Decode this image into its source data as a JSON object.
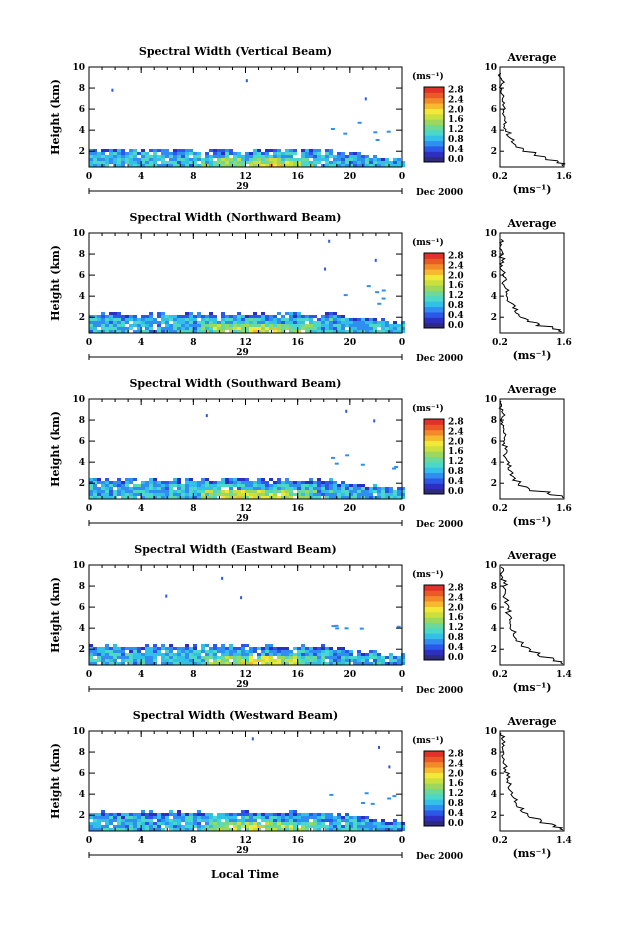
{
  "figure": {
    "time_axis_label": "Local Time",
    "date_label": "Dec 2000",
    "day_label": "29",
    "height_axis_label": "Height (km)",
    "unit_label": "(ms⁻¹)",
    "profile_title": "Average",
    "palette": [
      "#2e2a7e",
      "#2c2fc0",
      "#2c58e8",
      "#2f8ef0",
      "#32bfe8",
      "#4cd8c8",
      "#6ad99a",
      "#9bd95e",
      "#cbe03c",
      "#f2e83a",
      "#f7b92e",
      "#f28a2a",
      "#ea5a26",
      "#e0322a"
    ]
  },
  "chart_data": [
    {
      "type": "heatmap",
      "title": "Spectral Width (Vertical Beam)",
      "xlabel": "",
      "ylabel": "Height (km)",
      "x_ticks": [
        "0",
        "4",
        "8",
        "12",
        "16",
        "20",
        "0"
      ],
      "xlim": [
        0,
        24
      ],
      "y_ticks": [
        "2",
        "4",
        "6",
        "8",
        "10"
      ],
      "ylim": [
        0.5,
        10
      ],
      "colorbar": {
        "ticks": [
          "0.0",
          "0.4",
          "0.8",
          "1.2",
          "1.6",
          "2.0",
          "2.4",
          "2.8"
        ],
        "range": [
          0,
          2.8
        ]
      },
      "layer_top_km": 2.3,
      "profile": {
        "title": "Average",
        "xlabel": "(ms⁻¹)",
        "x_ticks": [
          "0.2",
          "1.6"
        ],
        "xlim": [
          0.2,
          1.6
        ],
        "y_ticks": [
          "2",
          "4",
          "6",
          "8",
          "10"
        ],
        "points": [
          [
            1.58,
            0.6
          ],
          [
            1.45,
            0.9
          ],
          [
            1.2,
            1.2
          ],
          [
            0.95,
            1.6
          ],
          [
            0.7,
            2.0
          ],
          [
            0.55,
            2.4
          ],
          [
            0.45,
            2.9
          ],
          [
            0.38,
            3.4
          ],
          [
            0.32,
            3.9
          ],
          [
            0.3,
            4.4
          ],
          [
            0.3,
            4.9
          ],
          [
            0.28,
            5.4
          ],
          [
            0.27,
            5.9
          ],
          [
            0.26,
            6.4
          ],
          [
            0.25,
            6.9
          ],
          [
            0.25,
            7.4
          ],
          [
            0.24,
            7.9
          ],
          [
            0.24,
            8.4
          ],
          [
            0.23,
            8.9
          ],
          [
            0.22,
            9.4
          ]
        ]
      }
    },
    {
      "type": "heatmap",
      "title": "Spectral Width (Northward Beam)",
      "xlabel": "",
      "ylabel": "Height (km)",
      "x_ticks": [
        "0",
        "4",
        "8",
        "12",
        "16",
        "20",
        "0"
      ],
      "xlim": [
        0,
        24
      ],
      "y_ticks": [
        "2",
        "4",
        "6",
        "8",
        "10"
      ],
      "ylim": [
        0.5,
        10
      ],
      "colorbar": {
        "ticks": [
          "0.0",
          "0.4",
          "0.8",
          "1.2",
          "1.6",
          "2.0",
          "2.4",
          "2.8"
        ],
        "range": [
          0,
          2.8
        ]
      },
      "layer_top_km": 2.5,
      "profile": {
        "title": "Average",
        "xlabel": "(ms⁻¹)",
        "x_ticks": [
          "0.2",
          "1.6"
        ],
        "xlim": [
          0.2,
          1.6
        ],
        "y_ticks": [
          "2",
          "4",
          "6",
          "8",
          "10"
        ],
        "points": [
          [
            1.55,
            0.6
          ],
          [
            1.35,
            0.9
          ],
          [
            1.0,
            1.2
          ],
          [
            0.8,
            1.6
          ],
          [
            0.65,
            2.0
          ],
          [
            0.55,
            2.4
          ],
          [
            0.48,
            2.9
          ],
          [
            0.42,
            3.4
          ],
          [
            0.36,
            3.9
          ],
          [
            0.33,
            4.4
          ],
          [
            0.3,
            4.9
          ],
          [
            0.28,
            5.4
          ],
          [
            0.27,
            5.9
          ],
          [
            0.26,
            6.4
          ],
          [
            0.25,
            6.9
          ],
          [
            0.24,
            7.4
          ],
          [
            0.24,
            7.9
          ],
          [
            0.23,
            8.4
          ],
          [
            0.23,
            8.9
          ],
          [
            0.22,
            9.4
          ]
        ]
      }
    },
    {
      "type": "heatmap",
      "title": "Spectral Width (Southward Beam)",
      "xlabel": "",
      "ylabel": "Height (km)",
      "x_ticks": [
        "0",
        "4",
        "8",
        "12",
        "16",
        "20",
        "0"
      ],
      "xlim": [
        0,
        24
      ],
      "y_ticks": [
        "2",
        "4",
        "6",
        "8",
        "10"
      ],
      "ylim": [
        0.5,
        10
      ],
      "colorbar": {
        "ticks": [
          "0.0",
          "0.4",
          "0.8",
          "1.2",
          "1.6",
          "2.0",
          "2.4",
          "2.8"
        ],
        "range": [
          0,
          2.8
        ]
      },
      "layer_top_km": 2.5,
      "profile": {
        "title": "Average",
        "xlabel": "(ms⁻¹)",
        "x_ticks": [
          "0.2",
          "1.6"
        ],
        "xlim": [
          0.2,
          1.6
        ],
        "y_ticks": [
          "2",
          "4",
          "6",
          "8",
          "10"
        ],
        "points": [
          [
            1.58,
            0.6
          ],
          [
            1.3,
            0.9
          ],
          [
            0.85,
            1.3
          ],
          [
            0.6,
            1.8
          ],
          [
            0.48,
            2.3
          ],
          [
            0.42,
            2.8
          ],
          [
            0.38,
            3.3
          ],
          [
            0.36,
            3.8
          ],
          [
            0.34,
            4.3
          ],
          [
            0.33,
            4.8
          ],
          [
            0.31,
            5.3
          ],
          [
            0.3,
            5.8
          ],
          [
            0.29,
            6.3
          ],
          [
            0.28,
            6.8
          ],
          [
            0.27,
            7.3
          ],
          [
            0.26,
            7.8
          ],
          [
            0.25,
            8.3
          ],
          [
            0.24,
            8.8
          ],
          [
            0.23,
            9.3
          ],
          [
            0.22,
            9.8
          ]
        ]
      }
    },
    {
      "type": "heatmap",
      "title": "Spectral Width (Eastward Beam)",
      "xlabel": "",
      "ylabel": "Height (km)",
      "x_ticks": [
        "0",
        "4",
        "8",
        "12",
        "16",
        "20",
        "0"
      ],
      "xlim": [
        0,
        24
      ],
      "y_ticks": [
        "2",
        "4",
        "6",
        "8",
        "10"
      ],
      "ylim": [
        0.5,
        10
      ],
      "colorbar": {
        "ticks": [
          "0.0",
          "0.4",
          "0.8",
          "1.2",
          "1.6",
          "2.0",
          "2.4",
          "2.8"
        ],
        "range": [
          0,
          2.8
        ]
      },
      "layer_top_km": 2.4,
      "profile": {
        "title": "Average",
        "xlabel": "(ms⁻¹)",
        "x_ticks": [
          "0.2",
          "1.4"
        ],
        "xlim": [
          0.2,
          1.4
        ],
        "y_ticks": [
          "2",
          "4",
          "6",
          "8",
          "10"
        ],
        "points": [
          [
            1.38,
            0.6
          ],
          [
            1.2,
            0.9
          ],
          [
            0.95,
            1.3
          ],
          [
            0.75,
            1.8
          ],
          [
            0.6,
            2.3
          ],
          [
            0.5,
            2.8
          ],
          [
            0.45,
            3.3
          ],
          [
            0.42,
            3.8
          ],
          [
            0.4,
            4.3
          ],
          [
            0.38,
            4.8
          ],
          [
            0.36,
            5.3
          ],
          [
            0.34,
            5.8
          ],
          [
            0.33,
            6.3
          ],
          [
            0.31,
            6.8
          ],
          [
            0.3,
            7.3
          ],
          [
            0.28,
            7.8
          ],
          [
            0.27,
            8.3
          ],
          [
            0.25,
            8.8
          ],
          [
            0.24,
            9.3
          ],
          [
            0.22,
            9.8
          ]
        ]
      }
    },
    {
      "type": "heatmap",
      "title": "Spectral Width (Westward Beam)",
      "xlabel": "Local Time",
      "ylabel": "Height (km)",
      "x_ticks": [
        "0",
        "4",
        "8",
        "12",
        "16",
        "20",
        "0"
      ],
      "xlim": [
        0,
        24
      ],
      "y_ticks": [
        "2",
        "4",
        "6",
        "8",
        "10"
      ],
      "ylim": [
        0.5,
        10
      ],
      "colorbar": {
        "ticks": [
          "0.0",
          "0.4",
          "0.8",
          "1.2",
          "1.6",
          "2.0",
          "2.4",
          "2.8"
        ],
        "range": [
          0,
          2.8
        ]
      },
      "layer_top_km": 2.4,
      "profile": {
        "title": "Average",
        "xlabel": "(ms⁻¹)",
        "x_ticks": [
          "0.2",
          "1.4"
        ],
        "xlim": [
          0.2,
          1.4
        ],
        "y_ticks": [
          "2",
          "4",
          "6",
          "8",
          "10"
        ],
        "points": [
          [
            1.38,
            0.6
          ],
          [
            1.2,
            0.9
          ],
          [
            0.95,
            1.3
          ],
          [
            0.75,
            1.8
          ],
          [
            0.62,
            2.3
          ],
          [
            0.52,
            2.8
          ],
          [
            0.47,
            3.3
          ],
          [
            0.43,
            3.8
          ],
          [
            0.4,
            4.3
          ],
          [
            0.38,
            4.8
          ],
          [
            0.35,
            5.3
          ],
          [
            0.33,
            5.8
          ],
          [
            0.31,
            6.3
          ],
          [
            0.3,
            6.8
          ],
          [
            0.28,
            7.3
          ],
          [
            0.27,
            7.8
          ],
          [
            0.25,
            8.3
          ],
          [
            0.24,
            8.8
          ],
          [
            0.23,
            9.3
          ],
          [
            0.22,
            9.8
          ]
        ]
      }
    }
  ]
}
